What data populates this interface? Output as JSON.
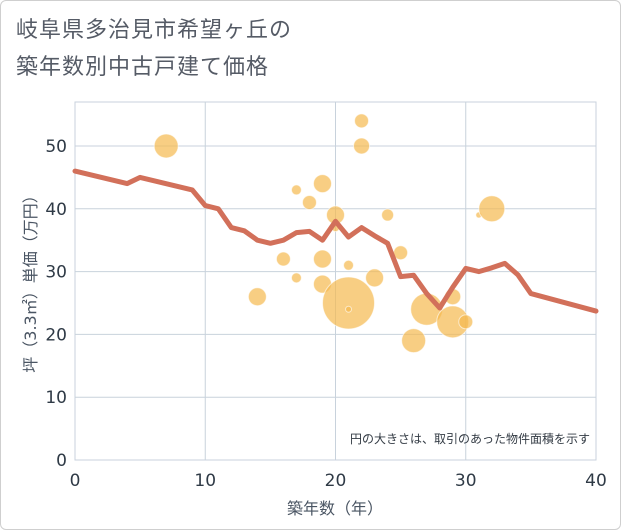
{
  "title_line1": "岐阜県多治見市希望ヶ丘の",
  "title_line2": "築年数別中古戸建て価格",
  "chart_data": {
    "type": "scatter",
    "xlabel": "築年数（年）",
    "ylabel": "坪（3.3㎡）単価（万円）",
    "xlim": [
      0,
      40
    ],
    "ylim": [
      0,
      57
    ],
    "xticks": [
      0,
      10,
      20,
      30,
      40
    ],
    "yticks": [
      0,
      10,
      20,
      30,
      40,
      50
    ],
    "note": "円の大きさは、取引のあった物件面積を示す",
    "bubble_color": "#f5b94f",
    "line_color": "#d2705a",
    "points": [
      {
        "x": 7,
        "y": 50,
        "s": 12
      },
      {
        "x": 14,
        "y": 26,
        "s": 9
      },
      {
        "x": 16,
        "y": 32,
        "s": 7
      },
      {
        "x": 17,
        "y": 43,
        "s": 5
      },
      {
        "x": 17,
        "y": 29,
        "s": 5
      },
      {
        "x": 18,
        "y": 41,
        "s": 7
      },
      {
        "x": 19,
        "y": 44,
        "s": 9
      },
      {
        "x": 19,
        "y": 32,
        "s": 9
      },
      {
        "x": 19,
        "y": 28,
        "s": 9
      },
      {
        "x": 20,
        "y": 39,
        "s": 9
      },
      {
        "x": 20,
        "y": 37,
        "s": 4
      },
      {
        "x": 21,
        "y": 31,
        "s": 5
      },
      {
        "x": 21,
        "y": 25,
        "s": 26
      },
      {
        "x": 21,
        "y": 24,
        "s": 3
      },
      {
        "x": 22,
        "y": 54,
        "s": 7
      },
      {
        "x": 22,
        "y": 50,
        "s": 8
      },
      {
        "x": 23,
        "y": 29,
        "s": 9
      },
      {
        "x": 24,
        "y": 39,
        "s": 6
      },
      {
        "x": 25,
        "y": 33,
        "s": 7
      },
      {
        "x": 26,
        "y": 19,
        "s": 12
      },
      {
        "x": 27,
        "y": 24,
        "s": 16
      },
      {
        "x": 29,
        "y": 26,
        "s": 8
      },
      {
        "x": 29,
        "y": 22,
        "s": 16
      },
      {
        "x": 30,
        "y": 22,
        "s": 7
      },
      {
        "x": 31,
        "y": 39,
        "s": 3
      },
      {
        "x": 32,
        "y": 40,
        "s": 13
      }
    ],
    "line": {
      "x": [
        0,
        4,
        5,
        9,
        10,
        11,
        12,
        13,
        14,
        15,
        16,
        17,
        18,
        19,
        20,
        21,
        22,
        23,
        24,
        25,
        26,
        27,
        28,
        29,
        30,
        31,
        32,
        33,
        34,
        35,
        40
      ],
      "y": [
        46,
        44,
        45,
        43,
        40.5,
        40,
        37,
        36.5,
        35,
        34.5,
        35,
        36.2,
        36.4,
        35,
        38,
        35.5,
        37,
        35.7,
        34.5,
        29.2,
        29.4,
        26.5,
        24.2,
        27.5,
        30.5,
        30,
        30.6,
        31.3,
        29.5,
        26.5,
        23.7
      ]
    }
  }
}
